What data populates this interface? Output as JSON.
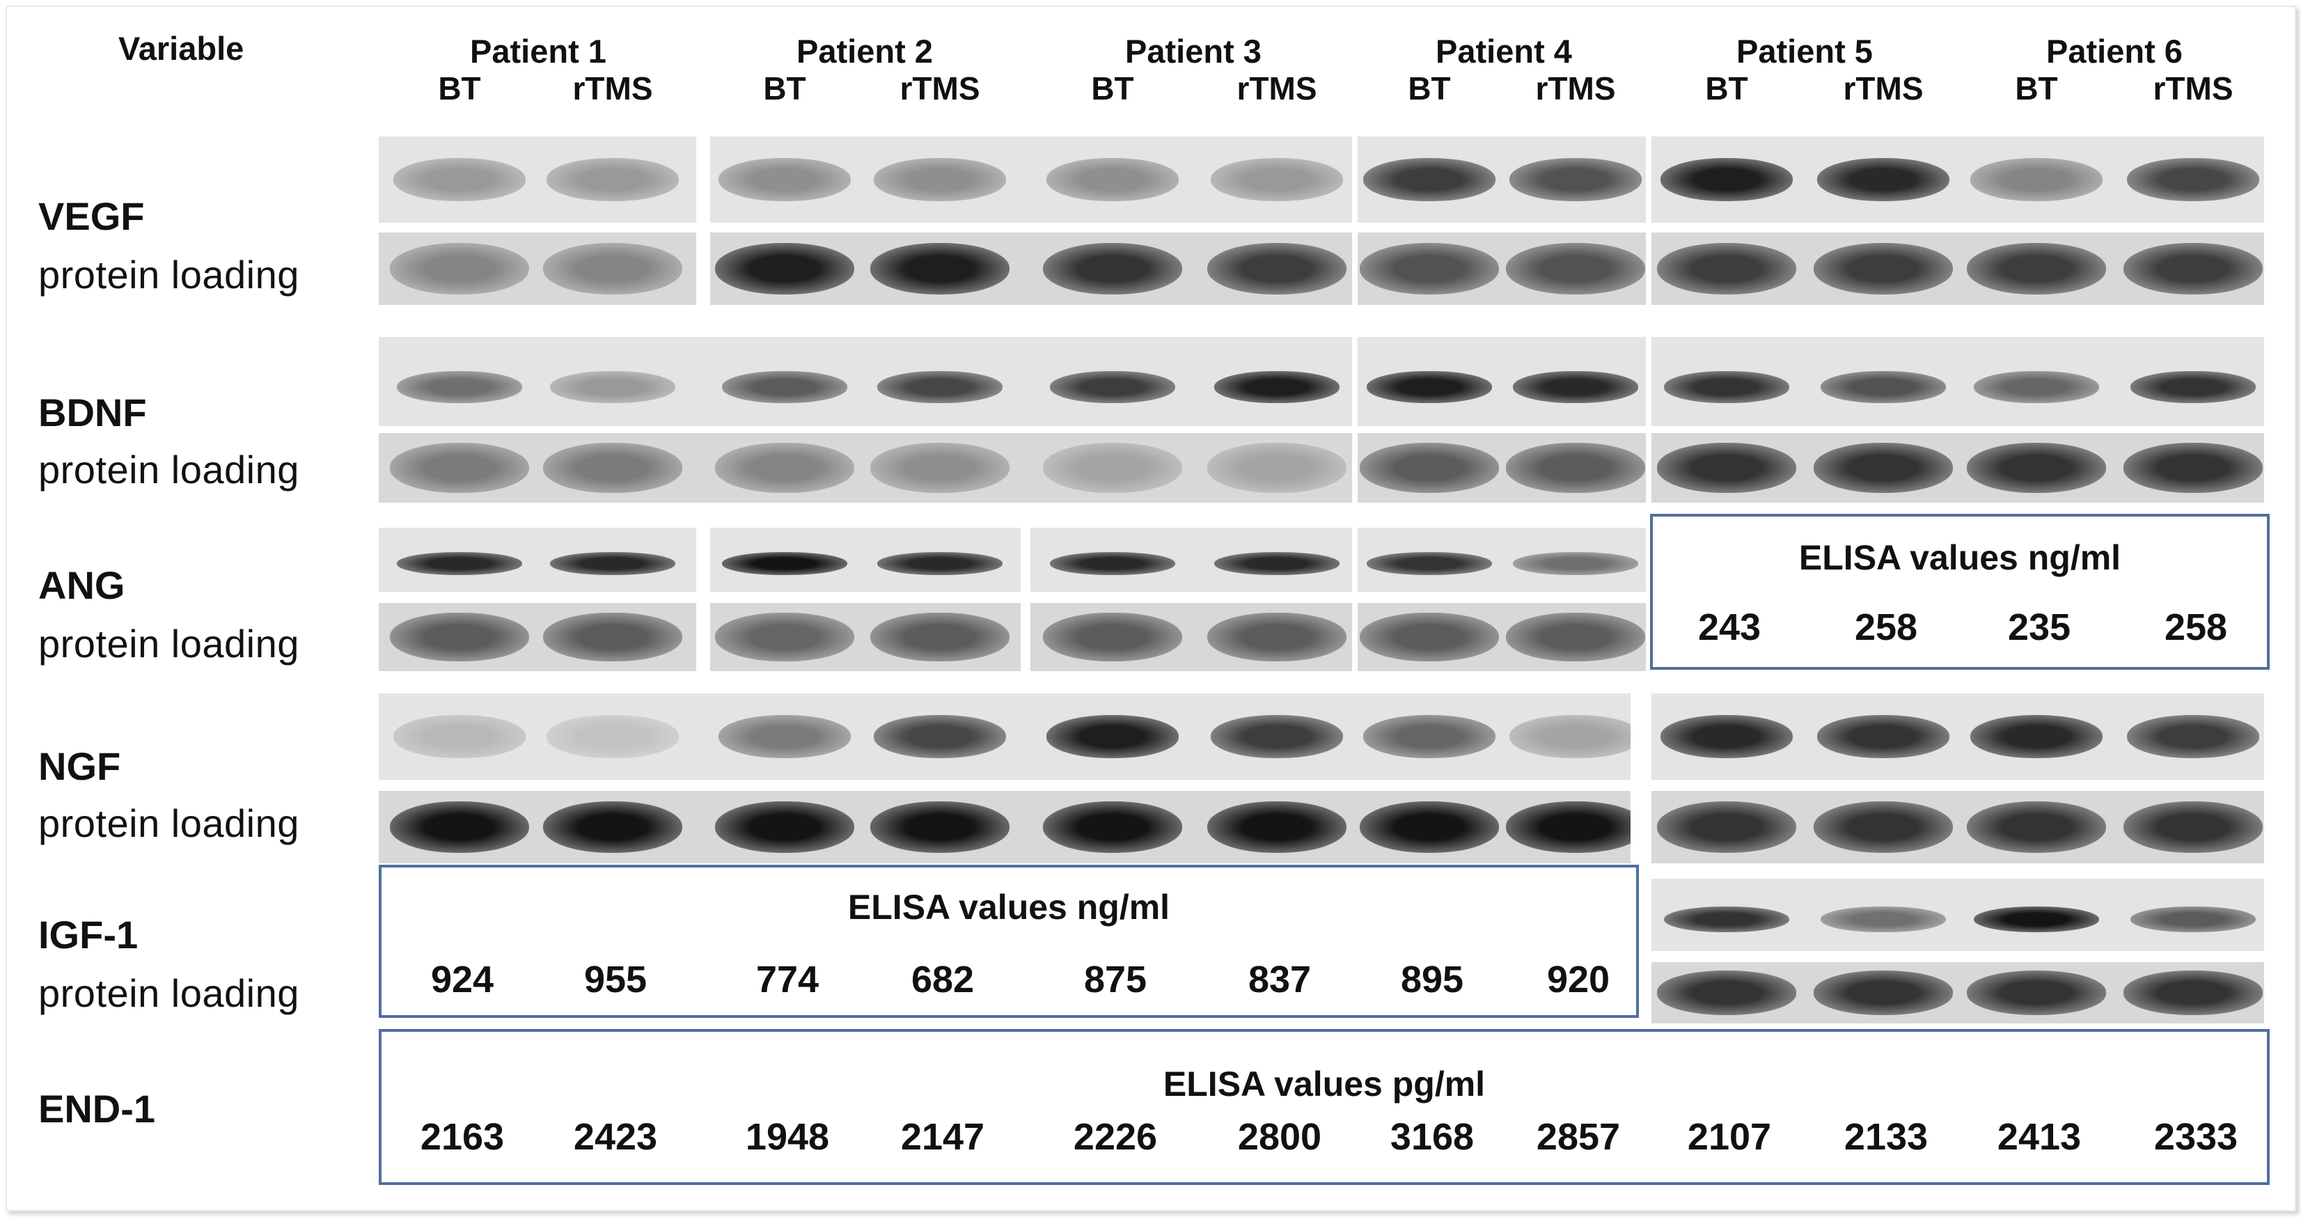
{
  "header": {
    "variable_label": "Variable",
    "patients": [
      "Patient 1",
      "Patient 2",
      "Patient 3",
      "Patient 4",
      "Patient 5",
      "Patient 6"
    ],
    "conditions": [
      "BT",
      "rTMS"
    ]
  },
  "rows": [
    {
      "name": "VEGF",
      "loading": "protein loading"
    },
    {
      "name": "BDNF",
      "loading": "protein loading"
    },
    {
      "name": "ANG",
      "loading": "protein loading"
    },
    {
      "name": "NGF",
      "loading": "protein loading"
    },
    {
      "name": "IGF-1",
      "loading": "protein loading"
    },
    {
      "name": "END-1",
      "loading": ""
    }
  ],
  "elisa": {
    "ang": {
      "title": "ELISA values ng/ml",
      "values": [
        "243",
        "258",
        "235",
        "258"
      ]
    },
    "igf1": {
      "title": "ELISA values ng/ml",
      "values": [
        "924",
        "955",
        "774",
        "682",
        "875",
        "837",
        "895",
        "920"
      ]
    },
    "end1": {
      "title": "ELISA values pg/ml",
      "values": [
        "2163",
        "2423",
        "1948",
        "2147",
        "2226",
        "2800",
        "3168",
        "2857",
        "2107",
        "2133",
        "2413",
        "2333"
      ]
    }
  },
  "blots": {
    "vegf": {
      "intensity": [
        0.35,
        0.35,
        0.4,
        0.4,
        0.4,
        0.35,
        0.8,
        0.7,
        0.95,
        0.9,
        0.45,
        0.75
      ],
      "style": "soft"
    },
    "vegf_load": {
      "intensity": [
        0.45,
        0.45,
        0.95,
        0.95,
        0.85,
        0.8,
        0.7,
        0.7,
        0.8,
        0.8,
        0.8,
        0.8
      ],
      "style": "wide"
    },
    "bdnf": {
      "intensity": [
        0.55,
        0.35,
        0.65,
        0.75,
        0.8,
        0.95,
        0.95,
        0.9,
        0.85,
        0.7,
        0.6,
        0.85
      ],
      "style": "sharp"
    },
    "bdnf_load": {
      "intensity": [
        0.5,
        0.5,
        0.45,
        0.4,
        0.3,
        0.3,
        0.65,
        0.65,
        0.85,
        0.85,
        0.85,
        0.85
      ],
      "style": "wide"
    },
    "ang": {
      "intensity": [
        0.9,
        0.9,
        1.0,
        0.9,
        0.9,
        0.9,
        0.85,
        0.55
      ],
      "style": "sharp"
    },
    "ang_load": {
      "intensity": [
        0.65,
        0.65,
        0.6,
        0.65,
        0.65,
        0.65,
        0.65,
        0.65
      ],
      "style": "wide"
    },
    "ngf": {
      "intensity": [
        0.2,
        0.15,
        0.5,
        0.75,
        0.95,
        0.8,
        0.6,
        0.3,
        0.9,
        0.85,
        0.9,
        0.8
      ],
      "style": "soft"
    },
    "ngf_load": {
      "intensity": [
        1.0,
        1.0,
        1.0,
        1.0,
        1.0,
        1.0,
        1.0,
        1.0,
        0.85,
        0.85,
        0.85,
        0.85
      ],
      "style": "wide"
    },
    "igf1": {
      "intensity": [
        0.85,
        0.55,
        1.0,
        0.65
      ],
      "style": "sharp"
    },
    "igf1_load": {
      "intensity": [
        0.85,
        0.85,
        0.85,
        0.85
      ],
      "style": "wide"
    }
  }
}
